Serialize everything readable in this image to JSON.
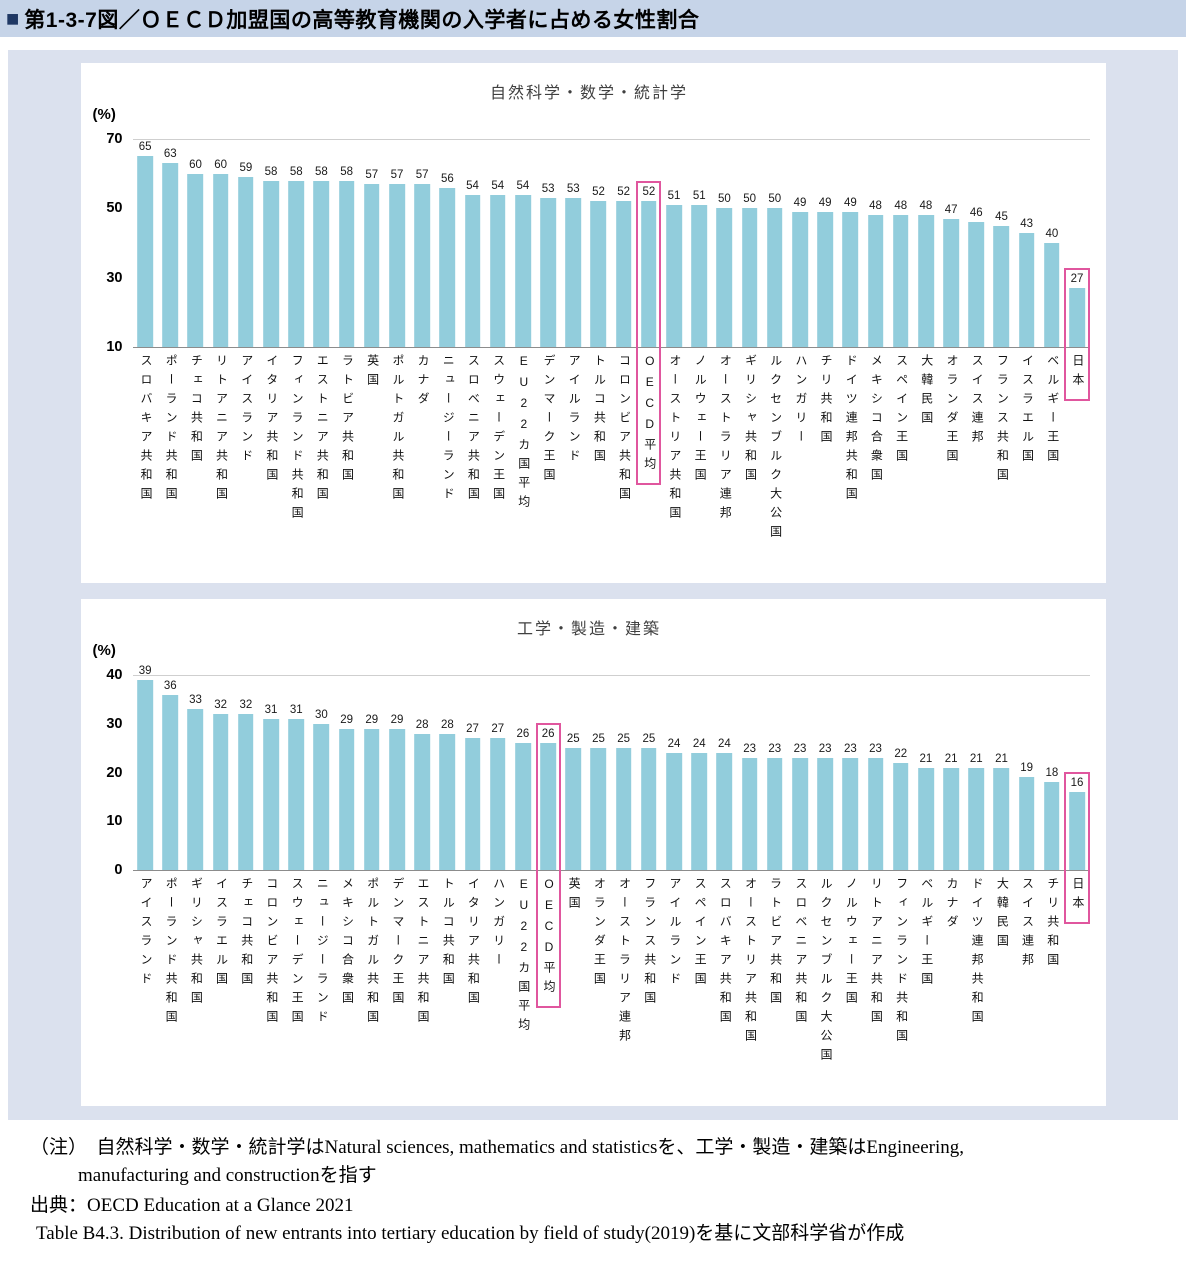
{
  "header": {
    "bullet": "■",
    "title": "第1-3-7図／ＯＥＣＤ加盟国の高等教育機関の入学者に占める女性割合"
  },
  "colors": {
    "bar": "#92cddc",
    "highlight": "#e0569e",
    "header_band": "#c6d4e8",
    "header_bullet": "#1f3864",
    "panel_bg": "#dbe1ee"
  },
  "chart_data": [
    {
      "type": "bar",
      "title": "自然科学・数学・統計学",
      "unit_label": "(%)",
      "y_ticks": [
        70,
        50,
        30,
        10
      ],
      "ylim": [
        10,
        70
      ],
      "grid": false,
      "legend": "none",
      "highlighted_categories": [
        "OECD平均",
        "日本"
      ],
      "categories": [
        "スロバキア共和国",
        "ポーランド共和国",
        "チェコ共和国",
        "リトアニア共和国",
        "アイスランド",
        "イタリア共和国",
        "フィンランド共和国",
        "エストニア共和国",
        "ラトビア共和国",
        "英国",
        "ポルトガル共和国",
        "カナダ",
        "ニュージーランド",
        "スロベニア共和国",
        "スウェーデン王国",
        "EU22カ国平均",
        "デンマーク王国",
        "アイルランド",
        "トルコ共和国",
        "コロンビア共和国",
        "OECD平均",
        "オーストリア共和国",
        "ノルウェー王国",
        "オーストラリア連邦",
        "ギリシャ共和国",
        "ルクセンブルク大公国",
        "ハンガリー",
        "チリ共和国",
        "ドイツ連邦共和国",
        "メキシコ合衆国",
        "スペイン王国",
        "大韓民国",
        "オランダ王国",
        "スイス連邦",
        "フランス共和国",
        "イスラエル国",
        "ベルギー王国",
        "日本"
      ],
      "values": [
        65,
        63,
        60,
        60,
        59,
        58,
        58,
        58,
        58,
        57,
        57,
        57,
        56,
        54,
        54,
        54,
        53,
        53,
        52,
        52,
        52,
        51,
        51,
        50,
        50,
        50,
        49,
        49,
        49,
        48,
        48,
        48,
        47,
        46,
        45,
        43,
        40,
        27
      ]
    },
    {
      "type": "bar",
      "title": "工学・製造・建築",
      "unit_label": "(%)",
      "y_ticks": [
        40,
        30,
        20,
        10,
        0
      ],
      "ylim": [
        0,
        40
      ],
      "grid": false,
      "legend": "none",
      "highlighted_categories": [
        "OECD平均",
        "日本"
      ],
      "categories": [
        "アイスランド",
        "ポーランド共和国",
        "ギリシャ共和国",
        "イスラエル国",
        "チェコ共和国",
        "コロンビア共和国",
        "スウェーデン王国",
        "ニュージーランド",
        "メキシコ合衆国",
        "ポルトガル共和国",
        "デンマーク王国",
        "エストニア共和国",
        "トルコ共和国",
        "イタリア共和国",
        "ハンガリー",
        "EU22カ国平均",
        "OECD平均",
        "英国",
        "オランダ王国",
        "オーストラリア連邦",
        "フランス共和国",
        "アイルランド",
        "スペイン王国",
        "スロバキア共和国",
        "オーストリア共和国",
        "ラトビア共和国",
        "スロベニア共和国",
        "ルクセンブルク大公国",
        "ノルウェー王国",
        "リトアニア共和国",
        "フィンランド共和国",
        "ベルギー王国",
        "カナダ",
        "ドイツ連邦共和国",
        "大韓民国",
        "スイス連邦",
        "チリ共和国",
        "日本"
      ],
      "values": [
        39,
        36,
        33,
        32,
        32,
        31,
        31,
        30,
        29,
        29,
        29,
        28,
        28,
        27,
        27,
        26,
        26,
        25,
        25,
        25,
        25,
        24,
        24,
        24,
        23,
        23,
        23,
        23,
        23,
        23,
        22,
        21,
        21,
        21,
        21,
        19,
        18,
        16
      ]
    }
  ],
  "notes": {
    "line1": "（注）　自然科学・数学・統計学はNatural sciences, mathematics and statisticsを、工学・製造・建築はEngineering,",
    "line2": "manufacturing and constructionを指す",
    "line3": "出典：OECD Education at a Glance 2021",
    "line4": "Table B4.3. Distribution of new entrants into tertiary education by field of study(2019)を基に文部科学省が作成"
  }
}
